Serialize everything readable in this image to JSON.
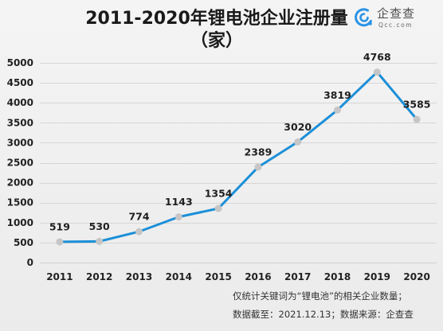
{
  "brand": {
    "icon": "qcc-logo-icon",
    "name": "企查查",
    "site": "Qcc.com",
    "color": "#2a93e6"
  },
  "chart_data": {
    "type": "line",
    "title": "2011-2020年锂电池企业注册量",
    "subtitle": "（家）",
    "categories": [
      "2011",
      "2012",
      "2013",
      "2014",
      "2015",
      "2016",
      "2017",
      "2018",
      "2019",
      "2020"
    ],
    "series": [
      {
        "values": [
          519,
          530,
          774,
          1143,
          1354,
          2389,
          3020,
          3819,
          4768,
          3585
        ],
        "color": "#1c8fd8",
        "marker_color": "#c6c6c6"
      }
    ],
    "ylim": [
      0,
      5000
    ],
    "yticks": [
      0,
      500,
      1000,
      1500,
      2000,
      2500,
      3000,
      3500,
      4000,
      4500,
      5000
    ],
    "grid": true,
    "data_labels": true,
    "legend": false
  },
  "footnotes": {
    "scope": "仅统计关键词为“锂电池”的相关企业数量；",
    "source": "数据截至：2021.12.13；数据来源：企查查"
  }
}
